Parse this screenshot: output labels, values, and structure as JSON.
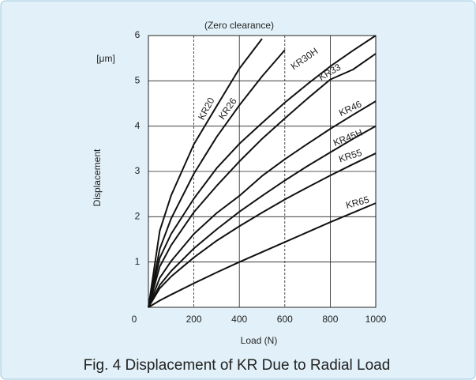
{
  "chart_data": {
    "type": "line",
    "title": "(Zero clearance)",
    "caption": "Fig. 4  Displacement of KR Due to Radial Load",
    "xlabel": "Load (N)",
    "ylabel": "Displacement",
    "yunit": "[μm]",
    "x": [
      0,
      50,
      100,
      200,
      300,
      400,
      500,
      600,
      700,
      800,
      900,
      1000
    ],
    "xlim": [
      0,
      1000
    ],
    "xticks": [
      0,
      200,
      400,
      600,
      800,
      1000
    ],
    "ylim": [
      0,
      6
    ],
    "yticks": [
      1,
      2,
      3,
      4,
      5,
      6
    ],
    "grid": true,
    "series": [
      {
        "name": "KR20",
        "color": "#111111",
        "values": [
          0,
          1.69,
          2.47,
          3.6,
          4.44,
          5.27,
          5.93,
          null,
          null,
          null,
          null,
          null
        ]
      },
      {
        "name": "KR26",
        "color": "#111111",
        "values": [
          0,
          1.29,
          1.96,
          2.95,
          3.76,
          4.46,
          5.1,
          5.68,
          null,
          null,
          null,
          null
        ]
      },
      {
        "name": "KR30H",
        "color": "#111111",
        "values": [
          0,
          1.09,
          1.62,
          2.4,
          3.07,
          3.61,
          4.07,
          4.52,
          4.93,
          5.32,
          5.67,
          6.0
        ]
      },
      {
        "name": "KR33",
        "color": "#111111",
        "values": [
          0,
          0.9,
          1.37,
          2.1,
          2.68,
          3.22,
          3.72,
          4.17,
          4.61,
          5.03,
          5.25,
          5.6
        ]
      },
      {
        "name": "KR46",
        "color": "#111111",
        "values": [
          0,
          0.65,
          1.02,
          1.62,
          2.08,
          2.46,
          2.9,
          3.27,
          3.61,
          3.94,
          4.25,
          4.55
        ]
      },
      {
        "name": "KR45H",
        "color": "#111111",
        "values": [
          0,
          0.49,
          0.8,
          1.3,
          1.72,
          2.11,
          2.46,
          2.8,
          3.12,
          3.42,
          3.72,
          4.0
        ]
      },
      {
        "name": "KR55",
        "color": "#111111",
        "values": [
          0,
          0.42,
          0.68,
          1.1,
          1.47,
          1.79,
          2.09,
          2.38,
          2.65,
          2.91,
          3.16,
          3.4
        ]
      },
      {
        "name": "KR65",
        "color": "#111111",
        "values": [
          0,
          0.15,
          0.28,
          0.53,
          0.77,
          1.0,
          1.22,
          1.44,
          1.66,
          1.88,
          2.09,
          2.3
        ]
      }
    ]
  }
}
